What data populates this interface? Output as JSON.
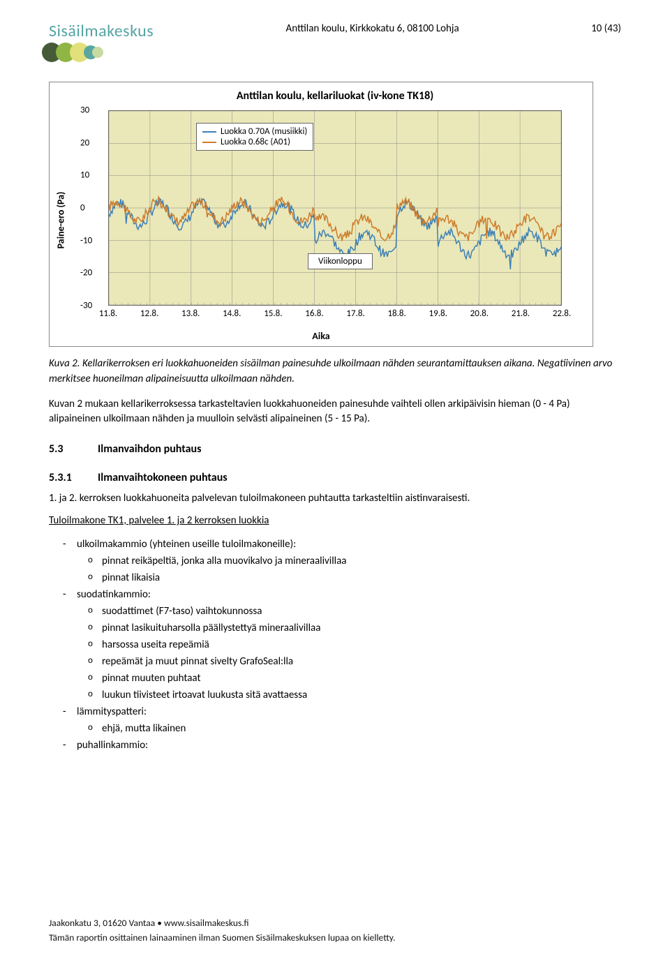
{
  "header": {
    "logo_text": "Sisäilmakeskus",
    "logo_colors": [
      "#465a38",
      "#8fb544",
      "#e2e07a",
      "#5aa7a0",
      "#c7daa0"
    ],
    "title": "Anttilan koulu, Kirkkokatu 6, 08100 Lohja",
    "page_marker": "10 (43)"
  },
  "chart": {
    "type": "line",
    "title": "Anttilan koulu, kellariluokat (iv-kone TK18)",
    "ylabel": "Paine-ero (Pa)",
    "xlabel": "Aika",
    "x_ticks": [
      "11.8.",
      "12.8.",
      "13.8.",
      "14.8.",
      "15.8.",
      "16.8.",
      "17.8.",
      "18.8.",
      "19.8.",
      "20.8.",
      "21.8.",
      "22.8."
    ],
    "y_ticks": [
      -30,
      -20,
      -10,
      0,
      10,
      20,
      30
    ],
    "ylim": [
      -30,
      30
    ],
    "background_color": "#eae8b8",
    "grid_color": "#888888",
    "series": [
      {
        "label": "Luokka 0.70A (musiikki)",
        "color": "#3d7fb5"
      },
      {
        "label": "Luokka 0.68c (A01)",
        "color": "#cc7b2b"
      }
    ],
    "annotation": {
      "label": "Viikonloppu"
    }
  },
  "caption": {
    "lead": "Kuva 2.",
    "rest": " Kellarikerroksen eri luokkahuoneiden sisäilman painesuhde ulkoilmaan nähden seurantamittauksen aikana. Negatiivinen arvo merkitsee huoneilman alipaineisuutta ulkoilmaan nähden."
  },
  "para1": "Kuvan 2 mukaan kellarikerroksessa tarkasteltavien luokkahuoneiden painesuhde vaihteli ollen arkipäivisin hieman (0 - 4 Pa) alipaineinen ulkoilmaan nähden ja muulloin selvästi alipaineinen (5 - 15 Pa).",
  "sec53": {
    "num": "5.3",
    "title": "Ilmanvaihdon puhtaus"
  },
  "sec531": {
    "num": "5.3.1",
    "title": "Ilmanvaihtokoneen puhtaus"
  },
  "para2": "1. ja 2. kerroksen luokkahuoneita palvelevan tuloilmakoneen puhtautta tarkasteltiin aistinvaraisesti.",
  "underline1": "Tuloilmakone TK1, palvelee 1. ja 2 kerroksen luokkia",
  "list": [
    {
      "text": "ulkoilmakammio (yhteinen useille tuloilmakoneille):",
      "sub": [
        "pinnat reikäpeltiä, jonka alla muovikalvo ja mineraalivillaa",
        "pinnat likaisia"
      ]
    },
    {
      "text": "suodatinkammio:",
      "sub": [
        "suodattimet (F7-taso) vaihtokunnossa",
        "pinnat lasikuituharsolla päällystettyä mineraalivillaa",
        "harsossa useita repeämiä",
        "repeämät ja muut pinnat sivelty GrafoSeal:lla",
        "pinnat muuten puhtaat",
        "luukun tiivisteet irtoavat luukusta sitä avattaessa"
      ]
    },
    {
      "text": "lämmityspatteri:",
      "sub": [
        "ehjä, mutta likainen"
      ]
    },
    {
      "text": "puhallinkammio:",
      "sub": []
    }
  ],
  "footer": {
    "line1": "Jaakonkatu 3, 01620 Vantaa • www.sisailmakeskus.fi",
    "line2": "Tämän raportin osittainen lainaaminen ilman Suomen Sisäilmakeskuksen lupaa on kielletty."
  }
}
